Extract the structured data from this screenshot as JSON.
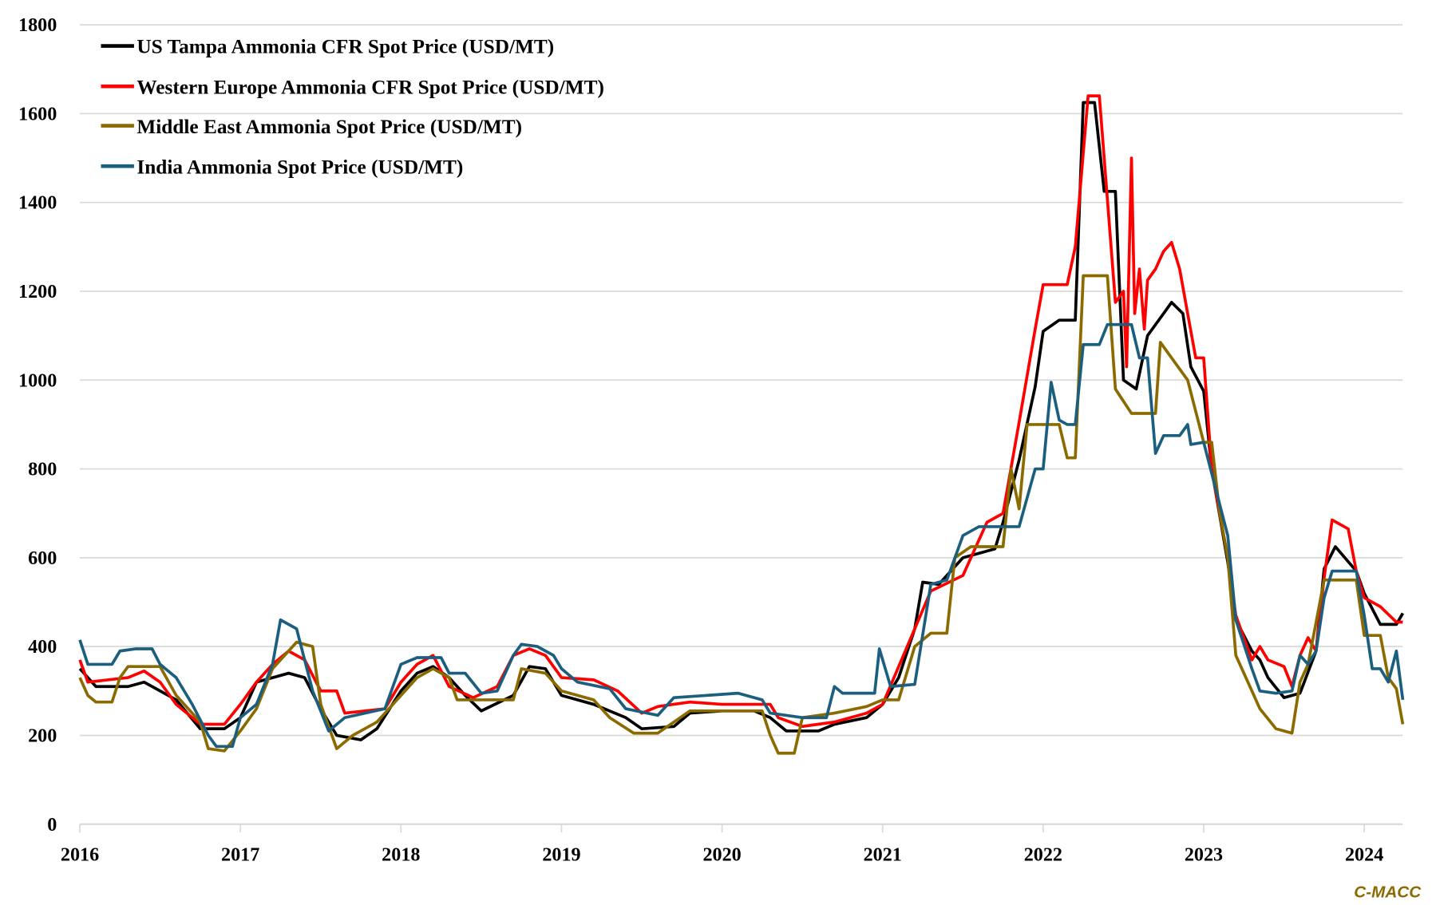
{
  "chart_data": {
    "type": "line",
    "title": "",
    "xlabel": "",
    "ylabel": "",
    "xlim": [
      2016,
      2024.24
    ],
    "ylim": [
      0,
      1800
    ],
    "yticks": [
      0,
      200,
      400,
      600,
      800,
      1000,
      1200,
      1400,
      1600,
      1800
    ],
    "xticks": [
      "2016",
      "2017",
      "2018",
      "2019",
      "2020",
      "2021",
      "2022",
      "2023",
      "2024"
    ],
    "grid": true,
    "legend_position": "top-left",
    "watermark": "C-MACC",
    "watermark_color": "#8B6A00",
    "series": [
      {
        "name": "US Tampa Ammonia CFR Spot Price (USD/MT)",
        "color": "#000000",
        "x": [
          2016.0,
          2016.1,
          2016.3,
          2016.4,
          2016.5,
          2016.6,
          2016.75,
          2016.9,
          2017.0,
          2017.1,
          2017.3,
          2017.4,
          2017.5,
          2017.6,
          2017.75,
          2017.85,
          2018.0,
          2018.1,
          2018.2,
          2018.3,
          2018.4,
          2018.5,
          2018.7,
          2018.8,
          2018.9,
          2019.0,
          2019.2,
          2019.4,
          2019.5,
          2019.7,
          2019.8,
          2020.0,
          2020.2,
          2020.3,
          2020.4,
          2020.6,
          2020.7,
          2020.9,
          2021.0,
          2021.1,
          2021.2,
          2021.25,
          2021.35,
          2021.5,
          2021.7,
          2021.75,
          2021.85,
          2021.95,
          2022.0,
          2022.1,
          2022.2,
          2022.25,
          2022.32,
          2022.38,
          2022.45,
          2022.5,
          2022.58,
          2022.65,
          2022.75,
          2022.8,
          2022.87,
          2022.92,
          2023.0,
          2023.05,
          2023.15,
          2023.2,
          2023.3,
          2023.35,
          2023.4,
          2023.5,
          2023.6,
          2023.7,
          2023.75,
          2023.82,
          2023.95,
          2024.0,
          2024.1,
          2024.2,
          2024.24
        ],
        "y": [
          350,
          310,
          310,
          320,
          300,
          280,
          215,
          215,
          240,
          320,
          340,
          330,
          260,
          200,
          190,
          215,
          300,
          340,
          355,
          330,
          290,
          255,
          290,
          355,
          350,
          290,
          270,
          240,
          215,
          220,
          250,
          255,
          255,
          240,
          210,
          210,
          225,
          240,
          270,
          330,
          440,
          545,
          540,
          600,
          620,
          680,
          820,
          985,
          1110,
          1135,
          1135,
          1625,
          1625,
          1425,
          1425,
          1000,
          980,
          1100,
          1150,
          1175,
          1150,
          1030,
          975,
          800,
          590,
          460,
          390,
          370,
          330,
          285,
          295,
          390,
          575,
          625,
          570,
          520,
          450,
          450,
          475
        ]
      },
      {
        "name": "Western Europe Ammonia CFR Spot Price (USD/MT)",
        "color": "#FF0000",
        "x": [
          2016.0,
          2016.05,
          2016.3,
          2016.4,
          2016.5,
          2016.6,
          2016.75,
          2016.9,
          2017.0,
          2017.1,
          2017.2,
          2017.3,
          2017.4,
          2017.5,
          2017.6,
          2017.65,
          2017.9,
          2018.0,
          2018.1,
          2018.2,
          2018.3,
          2018.45,
          2018.6,
          2018.7,
          2018.8,
          2018.9,
          2019.0,
          2019.2,
          2019.35,
          2019.5,
          2019.6,
          2019.8,
          2020.0,
          2020.3,
          2020.35,
          2020.5,
          2020.7,
          2020.9,
          2021.0,
          2021.2,
          2021.3,
          2021.5,
          2021.65,
          2021.75,
          2021.85,
          2021.95,
          2022.0,
          2022.15,
          2022.2,
          2022.28,
          2022.35,
          2022.38,
          2022.45,
          2022.5,
          2022.52,
          2022.55,
          2022.57,
          2022.6,
          2022.63,
          2022.65,
          2022.7,
          2022.75,
          2022.8,
          2022.85,
          2022.9,
          2022.95,
          2023.0,
          2023.05,
          2023.15,
          2023.2,
          2023.3,
          2023.35,
          2023.4,
          2023.5,
          2023.55,
          2023.6,
          2023.65,
          2023.7,
          2023.75,
          2023.8,
          2023.9,
          2023.95,
          2024.0,
          2024.1,
          2024.2,
          2024.24
        ],
        "y": [
          370,
          320,
          330,
          345,
          320,
          270,
          225,
          225,
          270,
          320,
          360,
          390,
          370,
          300,
          300,
          250,
          260,
          320,
          360,
          380,
          310,
          285,
          310,
          380,
          395,
          380,
          330,
          325,
          300,
          250,
          265,
          275,
          270,
          270,
          240,
          220,
          230,
          250,
          270,
          440,
          525,
          560,
          680,
          700,
          905,
          1115,
          1215,
          1215,
          1300,
          1640,
          1640,
          1500,
          1175,
          1200,
          1030,
          1500,
          1150,
          1250,
          1115,
          1225,
          1250,
          1290,
          1310,
          1250,
          1150,
          1050,
          1050,
          800,
          600,
          470,
          370,
          400,
          370,
          355,
          310,
          380,
          420,
          390,
          555,
          685,
          665,
          570,
          510,
          490,
          455,
          455
        ]
      },
      {
        "name": "Middle East Ammonia Spot Price (USD/MT)",
        "color": "#8B6A00",
        "x": [
          2016.0,
          2016.05,
          2016.1,
          2016.2,
          2016.25,
          2016.3,
          2016.5,
          2016.6,
          2016.75,
          2016.8,
          2016.9,
          2017.0,
          2017.1,
          2017.2,
          2017.3,
          2017.35,
          2017.45,
          2017.5,
          2017.6,
          2017.7,
          2017.85,
          2018.0,
          2018.1,
          2018.2,
          2018.3,
          2018.35,
          2018.5,
          2018.7,
          2018.75,
          2018.9,
          2019.0,
          2019.2,
          2019.3,
          2019.45,
          2019.6,
          2019.7,
          2019.8,
          2020.0,
          2020.25,
          2020.3,
          2020.35,
          2020.45,
          2020.5,
          2020.7,
          2020.9,
          2021.0,
          2021.1,
          2021.2,
          2021.3,
          2021.4,
          2021.45,
          2021.55,
          2021.75,
          2021.8,
          2021.85,
          2021.9,
          2022.1,
          2022.15,
          2022.2,
          2022.25,
          2022.4,
          2022.45,
          2022.55,
          2022.7,
          2022.73,
          2022.8,
          2022.9,
          2023.0,
          2023.05,
          2023.1,
          2023.15,
          2023.2,
          2023.3,
          2023.35,
          2023.45,
          2023.55,
          2023.6,
          2023.65,
          2023.75,
          2023.95,
          2024.0,
          2024.1,
          2024.15,
          2024.2,
          2024.24
        ],
        "y": [
          330,
          290,
          275,
          275,
          330,
          355,
          355,
          290,
          230,
          170,
          165,
          210,
          260,
          350,
          390,
          410,
          400,
          270,
          170,
          200,
          230,
          290,
          330,
          350,
          330,
          280,
          280,
          280,
          350,
          340,
          300,
          280,
          240,
          205,
          205,
          230,
          255,
          255,
          255,
          200,
          160,
          160,
          240,
          250,
          265,
          280,
          280,
          400,
          430,
          430,
          600,
          625,
          625,
          800,
          710,
          900,
          900,
          825,
          825,
          1235,
          1235,
          980,
          925,
          925,
          1085,
          1050,
          1000,
          860,
          860,
          700,
          600,
          380,
          300,
          260,
          215,
          205,
          320,
          360,
          550,
          550,
          425,
          425,
          330,
          305,
          225
        ]
      },
      {
        "name": "India Ammonia Spot Price (USD/MT)",
        "color": "#1B5E7E",
        "x": [
          2016.0,
          2016.05,
          2016.2,
          2016.25,
          2016.35,
          2016.45,
          2016.5,
          2016.6,
          2016.7,
          2016.8,
          2016.85,
          2016.95,
          2017.0,
          2017.1,
          2017.2,
          2017.25,
          2017.35,
          2017.45,
          2017.55,
          2017.65,
          2017.9,
          2018.0,
          2018.1,
          2018.25,
          2018.3,
          2018.4,
          2018.5,
          2018.6,
          2018.7,
          2018.75,
          2018.85,
          2018.95,
          2019.0,
          2019.1,
          2019.3,
          2019.4,
          2019.6,
          2019.7,
          2019.9,
          2020.1,
          2020.25,
          2020.3,
          2020.5,
          2020.65,
          2020.7,
          2020.75,
          2020.95,
          2020.98,
          2021.05,
          2021.2,
          2021.3,
          2021.4,
          2021.5,
          2021.6,
          2021.85,
          2021.95,
          2022.0,
          2022.05,
          2022.1,
          2022.15,
          2022.2,
          2022.25,
          2022.35,
          2022.4,
          2022.55,
          2022.6,
          2022.65,
          2022.7,
          2022.75,
          2022.85,
          2022.9,
          2022.92,
          2023.0,
          2023.05,
          2023.15,
          2023.2,
          2023.3,
          2023.35,
          2023.45,
          2023.55,
          2023.6,
          2023.65,
          2023.7,
          2023.75,
          2023.8,
          2023.95,
          2024.0,
          2024.05,
          2024.1,
          2024.15,
          2024.2,
          2024.24
        ],
        "y": [
          415,
          360,
          360,
          390,
          395,
          395,
          360,
          330,
          270,
          200,
          175,
          175,
          240,
          270,
          360,
          460,
          440,
          300,
          210,
          240,
          260,
          360,
          375,
          375,
          340,
          340,
          295,
          300,
          380,
          405,
          400,
          380,
          350,
          320,
          305,
          260,
          245,
          285,
          290,
          295,
          280,
          250,
          240,
          240,
          310,
          295,
          295,
          395,
          310,
          315,
          540,
          550,
          650,
          670,
          670,
          800,
          800,
          995,
          910,
          900,
          900,
          1080,
          1080,
          1125,
          1125,
          1050,
          1050,
          835,
          875,
          875,
          900,
          855,
          860,
          790,
          650,
          460,
          350,
          300,
          295,
          300,
          380,
          360,
          390,
          510,
          570,
          570,
          470,
          350,
          350,
          320,
          390,
          280
        ]
      }
    ]
  }
}
